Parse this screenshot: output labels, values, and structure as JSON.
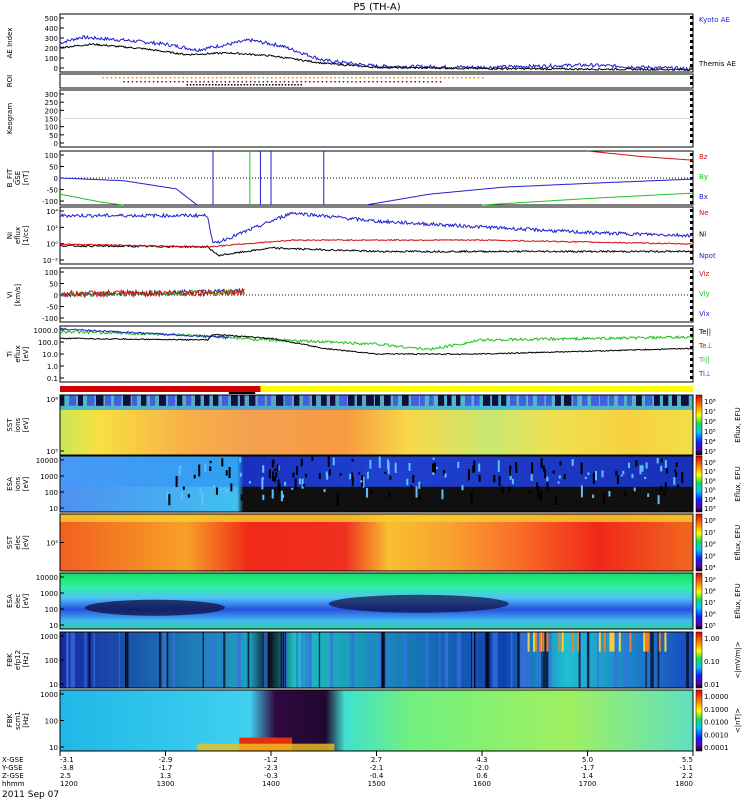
{
  "title": "P5 (TH-A)",
  "date_label": "2011 Sep 07",
  "colors": {
    "black": "#000000",
    "blue": "#1f1fd0",
    "red": "#d01010",
    "green": "#20c020",
    "darkred": "#a00000",
    "orange": "#ff8000",
    "yellow": "#ffff00",
    "cyan": "#00d8ff"
  },
  "chart_data": {
    "type": "line",
    "xrange": [
      1200,
      1800
    ],
    "xticks": [
      1200,
      1300,
      1400,
      1500,
      1600,
      1700,
      1800
    ],
    "footer": {
      "rows": [
        {
          "label": "X-GSE",
          "values": [
            "-3.1",
            "-2.9",
            "-1.2",
            "2.7",
            "4.3",
            "5.0",
            "5.5"
          ]
        },
        {
          "label": "Y-GSE",
          "values": [
            "-3.8",
            "-1.7",
            "-2.3",
            "-2.1",
            "-2.0",
            "-1.7",
            "-1.1"
          ]
        },
        {
          "label": "Z-GSE",
          "values": [
            "2.5",
            "1.3",
            "-0.3",
            "-0.4",
            "0.6",
            "1.4",
            "2.2"
          ]
        },
        {
          "label": "hhmm",
          "values": [
            "1200",
            "1300",
            "1400",
            "1500",
            "1600",
            "1700",
            "1800"
          ]
        }
      ]
    },
    "panels": [
      {
        "id": "ae",
        "ylabel": [
          "AE Index"
        ],
        "yticks": [
          "500",
          "400",
          "300",
          "200",
          "100",
          "0"
        ],
        "legend": [
          {
            "text": "Kyoto AE",
            "color": "#1f1fd0"
          },
          {
            "text": "Themis AE",
            "color": "#000000"
          }
        ]
      },
      {
        "id": "roi",
        "ylabel": [
          "ROI"
        ],
        "yticks": [],
        "legend": []
      },
      {
        "id": "keogram",
        "ylabel": [
          "Keogram"
        ],
        "yticks": [
          "300",
          "250",
          "200",
          "150",
          "100",
          "50",
          "0"
        ],
        "legend": []
      },
      {
        "id": "bfit",
        "ylabel": [
          "B_FIT",
          "GSE",
          "[nT]"
        ],
        "yticks": [
          "100",
          "50",
          "0",
          "-50",
          "-100"
        ],
        "legend": [
          {
            "text": "Bz",
            "color": "#d01010"
          },
          {
            "text": "By",
            "color": "#20c020"
          },
          {
            "text": "Bx",
            "color": "#1f1fd0"
          }
        ]
      },
      {
        "id": "ni",
        "ylabel": [
          "Ni",
          "eflux",
          "[1/cc]"
        ],
        "yticks": [
          "10⁴",
          "10²",
          "10⁰",
          "10⁻²"
        ],
        "legend": [
          {
            "text": "Ne",
            "color": "#d01010"
          },
          {
            "text": "Ni",
            "color": "#000000"
          },
          {
            "text": "Npot",
            "color": "#1f1fd0"
          }
        ]
      },
      {
        "id": "vi",
        "ylabel": [
          "Vi",
          "[km/s]"
        ],
        "yticks": [
          "100",
          "50",
          "0",
          "-50",
          "-100"
        ],
        "legend": [
          {
            "text": "Viz",
            "color": "#d01010"
          },
          {
            "text": "Viy",
            "color": "#20c020"
          },
          {
            "text": "Vix",
            "color": "#1f1fd0"
          }
        ]
      },
      {
        "id": "ti",
        "ylabel": [
          "Ti",
          "eflux",
          "[eV]"
        ],
        "yticks": [
          "1000.0",
          "100.0",
          "10.0",
          "1.0",
          "0.1"
        ],
        "legend": [
          {
            "text": "Te||",
            "color": "#000000"
          },
          {
            "text": "Te⊥",
            "color": "#d01010"
          },
          {
            "text": "Ti||",
            "color": "#20c020"
          },
          {
            "text": "Ti⊥",
            "color": "#1f1fd0"
          }
        ]
      },
      {
        "id": "sst_i",
        "ylabel": [
          "SST",
          "ions",
          "[eV]"
        ],
        "yticks": [
          "10⁶",
          "10⁵"
        ],
        "colorbar": {
          "label": "Eflux, EFU",
          "ticks": [
            "10⁸",
            "10⁷",
            "10⁶",
            "10⁵",
            "10⁴",
            "10³"
          ]
        }
      },
      {
        "id": "esa_i",
        "ylabel": [
          "ESA",
          "ions",
          "[eV]"
        ],
        "yticks": [
          "10000",
          "1000",
          "100",
          "10"
        ],
        "colorbar": {
          "label": "Eflux, EFU",
          "ticks": [
            "10⁸",
            "10⁷",
            "10⁶",
            "10⁵",
            "10⁴",
            "10³"
          ]
        }
      },
      {
        "id": "sst_e",
        "ylabel": [
          "SST",
          "elec",
          "[eV]"
        ],
        "yticks": [
          "10⁵"
        ],
        "colorbar": {
          "label": "Eflux, EFU",
          "ticks": [
            "10⁸",
            "10⁷",
            "10⁶",
            "10⁵",
            "10⁴"
          ]
        }
      },
      {
        "id": "esa_e",
        "ylabel": [
          "ESA",
          "elec",
          "[eV]"
        ],
        "yticks": [
          "10000",
          "1000",
          "100",
          "10"
        ],
        "colorbar": {
          "label": "Eflux, EFU",
          "ticks": [
            "10⁹",
            "10⁸",
            "10⁷",
            "10⁶",
            "10⁵"
          ]
        }
      },
      {
        "id": "fbk_e",
        "ylabel": [
          "FBK",
          "efp12",
          "[Hz]"
        ],
        "yticks": [
          "1000",
          "100",
          "10"
        ],
        "colorbar": {
          "label": "<|mV/m|>",
          "ticks": [
            "1.00",
            "0.10",
            "0.01"
          ]
        }
      },
      {
        "id": "fbk_b",
        "ylabel": [
          "FBK",
          "scm1",
          "[Hz]"
        ],
        "yticks": [
          "1000",
          "100",
          "10"
        ],
        "colorbar": {
          "label": "<|nT|>",
          "ticks": [
            "1.0000",
            "0.1000",
            "0.0100",
            "0.0010",
            "0.0001"
          ]
        }
      }
    ]
  }
}
